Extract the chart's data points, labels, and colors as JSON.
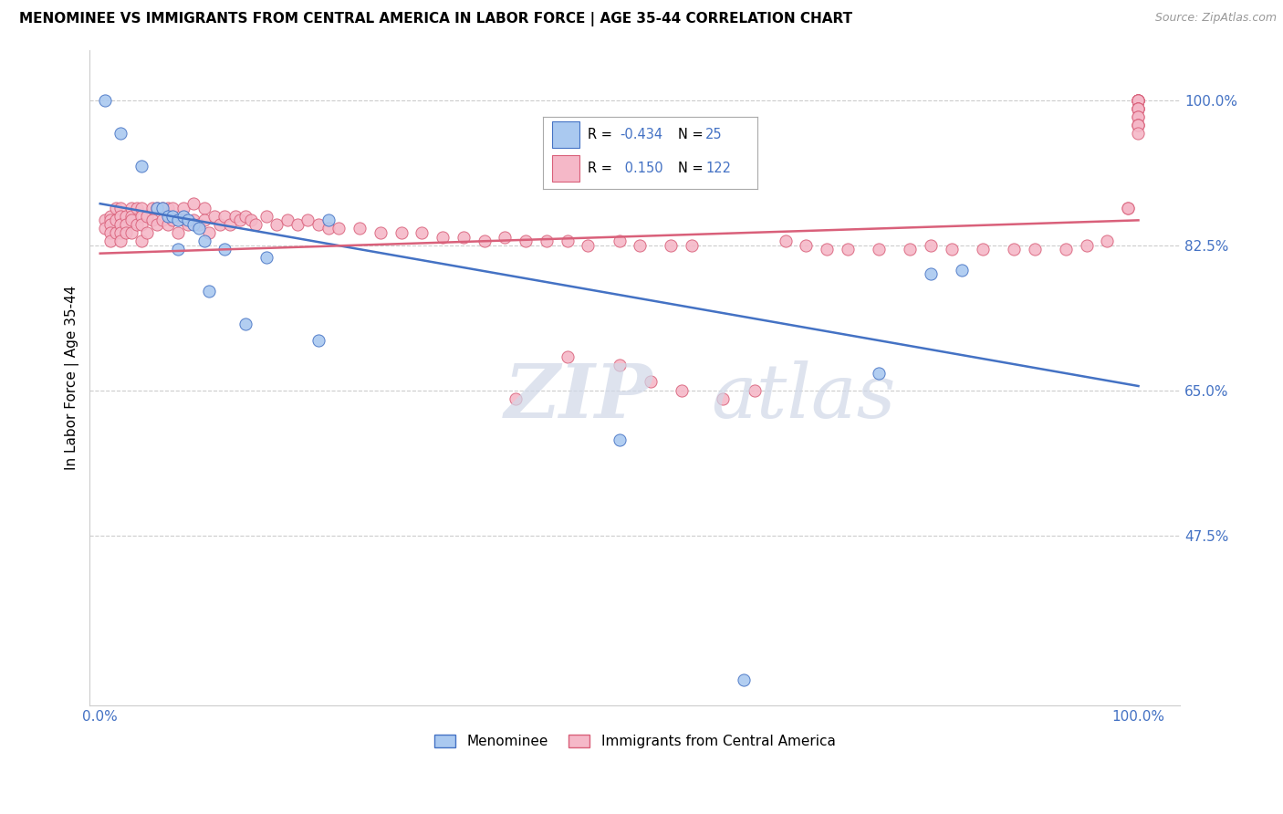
{
  "title": "MENOMINEE VS IMMIGRANTS FROM CENTRAL AMERICA IN LABOR FORCE | AGE 35-44 CORRELATION CHART",
  "source": "Source: ZipAtlas.com",
  "ylabel": "In Labor Force | Age 35-44",
  "ytick_labels": [
    "100.0%",
    "82.5%",
    "65.0%",
    "47.5%"
  ],
  "ytick_values": [
    1.0,
    0.825,
    0.65,
    0.475
  ],
  "color_menominee": "#aac9f0",
  "color_immigrants": "#f5b8c8",
  "line_color_menominee": "#4472c4",
  "line_color_immigrants": "#d9607a",
  "legend_R_menominee": "-0.434",
  "legend_N_menominee": "25",
  "legend_R_immigrants": "0.150",
  "legend_N_immigrants": "122",
  "menominee_x": [
    0.005,
    0.02,
    0.04,
    0.055,
    0.06,
    0.065,
    0.07,
    0.075,
    0.075,
    0.08,
    0.085,
    0.09,
    0.095,
    0.1,
    0.105,
    0.12,
    0.14,
    0.16,
    0.21,
    0.22,
    0.5,
    0.62,
    0.75,
    0.8,
    0.83
  ],
  "menominee_y": [
    1.0,
    0.96,
    0.92,
    0.87,
    0.87,
    0.86,
    0.86,
    0.855,
    0.82,
    0.86,
    0.855,
    0.85,
    0.845,
    0.83,
    0.77,
    0.82,
    0.73,
    0.81,
    0.71,
    0.855,
    0.59,
    0.3,
    0.67,
    0.79,
    0.795
  ],
  "immigrants_x": [
    0.005,
    0.005,
    0.01,
    0.01,
    0.01,
    0.01,
    0.01,
    0.015,
    0.015,
    0.015,
    0.02,
    0.02,
    0.02,
    0.02,
    0.02,
    0.025,
    0.025,
    0.025,
    0.03,
    0.03,
    0.03,
    0.03,
    0.035,
    0.035,
    0.04,
    0.04,
    0.04,
    0.04,
    0.045,
    0.045,
    0.05,
    0.05,
    0.055,
    0.055,
    0.06,
    0.06,
    0.065,
    0.065,
    0.07,
    0.07,
    0.075,
    0.08,
    0.08,
    0.085,
    0.09,
    0.09,
    0.095,
    0.1,
    0.1,
    0.105,
    0.11,
    0.115,
    0.12,
    0.125,
    0.13,
    0.135,
    0.14,
    0.145,
    0.15,
    0.16,
    0.17,
    0.18,
    0.19,
    0.2,
    0.21,
    0.22,
    0.23,
    0.25,
    0.27,
    0.29,
    0.31,
    0.33,
    0.35,
    0.37,
    0.39,
    0.41,
    0.43,
    0.45,
    0.47,
    0.5,
    0.52,
    0.55,
    0.57,
    0.4,
    0.45,
    0.5,
    0.53,
    0.56,
    0.6,
    0.63,
    0.66,
    0.68,
    0.7,
    0.72,
    0.75,
    0.78,
    0.8,
    0.82,
    0.85,
    0.88,
    0.9,
    0.93,
    0.95,
    0.97,
    0.99,
    0.99,
    1.0,
    1.0,
    1.0,
    1.0,
    1.0,
    1.0,
    1.0,
    1.0,
    1.0,
    1.0,
    1.0,
    1.0,
    1.0,
    1.0,
    1.0,
    1.0
  ],
  "immigrants_y": [
    0.855,
    0.845,
    0.86,
    0.855,
    0.85,
    0.84,
    0.83,
    0.87,
    0.855,
    0.84,
    0.87,
    0.86,
    0.85,
    0.84,
    0.83,
    0.86,
    0.85,
    0.84,
    0.87,
    0.86,
    0.855,
    0.84,
    0.87,
    0.85,
    0.87,
    0.86,
    0.85,
    0.83,
    0.86,
    0.84,
    0.87,
    0.855,
    0.87,
    0.85,
    0.87,
    0.855,
    0.87,
    0.85,
    0.87,
    0.855,
    0.84,
    0.87,
    0.855,
    0.85,
    0.875,
    0.855,
    0.85,
    0.87,
    0.855,
    0.84,
    0.86,
    0.85,
    0.86,
    0.85,
    0.86,
    0.855,
    0.86,
    0.855,
    0.85,
    0.86,
    0.85,
    0.855,
    0.85,
    0.855,
    0.85,
    0.845,
    0.845,
    0.845,
    0.84,
    0.84,
    0.84,
    0.835,
    0.835,
    0.83,
    0.835,
    0.83,
    0.83,
    0.83,
    0.825,
    0.83,
    0.825,
    0.825,
    0.825,
    0.64,
    0.69,
    0.68,
    0.66,
    0.65,
    0.64,
    0.65,
    0.83,
    0.825,
    0.82,
    0.82,
    0.82,
    0.82,
    0.825,
    0.82,
    0.82,
    0.82,
    0.82,
    0.82,
    0.825,
    0.83,
    0.87,
    0.87,
    1.0,
    1.0,
    1.0,
    1.0,
    1.0,
    1.0,
    0.99,
    0.99,
    0.99,
    0.99,
    0.98,
    0.98,
    0.97,
    0.97,
    0.97,
    0.96
  ]
}
